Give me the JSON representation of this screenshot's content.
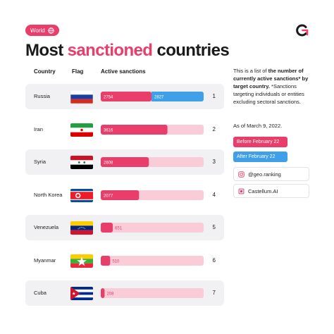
{
  "tag": {
    "label": "World",
    "color": "#e93d6a"
  },
  "title": {
    "part1": "Most ",
    "highlight": "sanctioned",
    "part2": " countries"
  },
  "columns": {
    "country": "Country",
    "flag": "Flag",
    "sanctions": "Active sanctions"
  },
  "rows": [
    {
      "country": "Russia",
      "rank": "1",
      "flag": "russia-flag"
    },
    {
      "country": "Iran",
      "rank": "2",
      "flag": "iran-flag"
    },
    {
      "country": "Syria",
      "rank": "3",
      "flag": "syria-flag"
    },
    {
      "country": "North Korea",
      "rank": "4",
      "flag": "north-korea-flag"
    },
    {
      "country": "Venezuela",
      "rank": "5",
      "flag": "venezuela-flag"
    },
    {
      "country": "Myanmar",
      "rank": "6",
      "flag": "myanmar-flag"
    },
    {
      "country": "Cuba",
      "rank": "7",
      "flag": "cuba-flag"
    }
  ],
  "description": {
    "lead": "This is a list of ",
    "bold": "the number of currently active sanctions* by target country.",
    "rest": " *Sanctions targeting individuals or entities excluding sectoral sanctions."
  },
  "as_of": "As of March 9, 2022.",
  "legend": [
    {
      "label": "Before February 22",
      "color": "#e93d6a"
    },
    {
      "label": "After February 22",
      "color": "#3fa0e8"
    }
  ],
  "sources": [
    {
      "icon": "instagram-icon",
      "label": "@geo.ranking"
    },
    {
      "icon": "castellum-icon",
      "label": "Castellum.AI"
    }
  ],
  "colors": {
    "before": "#e93d6a",
    "after": "#3fa0e8",
    "track": "#f9ccd8",
    "row_bg": "#f1f1f3"
  },
  "chart_data": {
    "type": "bar",
    "orientation": "horizontal",
    "stacked": true,
    "categories": [
      "Russia",
      "Iran",
      "Syria",
      "North Korea",
      "Venezuela",
      "Myanmar",
      "Cuba"
    ],
    "series": [
      {
        "name": "Before February 22",
        "values": [
          2754,
          3616,
          2608,
          2077,
          651,
          510,
          208
        ]
      },
      {
        "name": "After February 22",
        "values": [
          2827,
          0,
          0,
          0,
          0,
          0,
          0
        ]
      }
    ],
    "xlim": [
      0,
      5581
    ],
    "title": "Most sanctioned countries",
    "legend": "right"
  }
}
